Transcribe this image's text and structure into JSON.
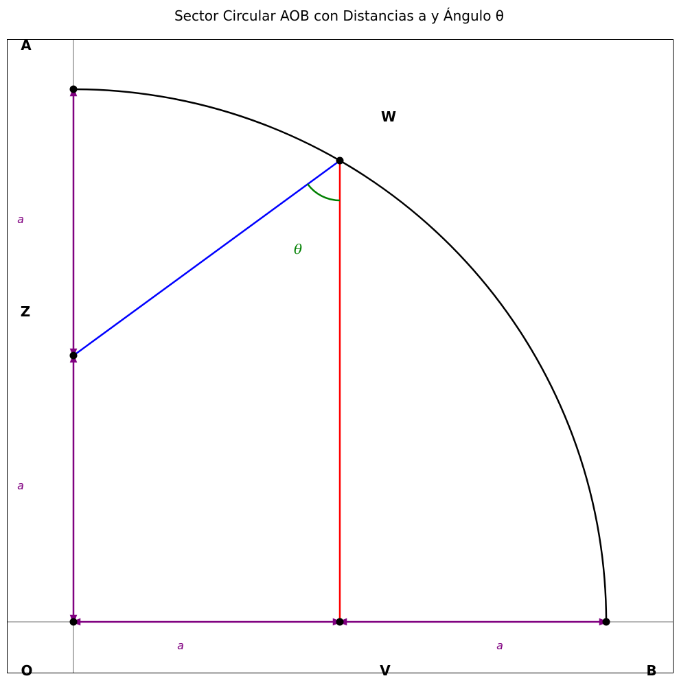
{
  "title": "Sector Circular AOB con Distancias a y Ángulo θ",
  "points": {
    "A": "A",
    "B": "B",
    "O": "O",
    "V": "V",
    "W": "W",
    "Z": "Z"
  },
  "distance_label": "a",
  "angle_label": "θ",
  "colors": {
    "arc": "#000000",
    "segment_ZW": "#0000ff",
    "segment_WV": "#ff0000",
    "distance_arrows": "#800080",
    "angle": "#008000",
    "points": "#000000"
  }
}
